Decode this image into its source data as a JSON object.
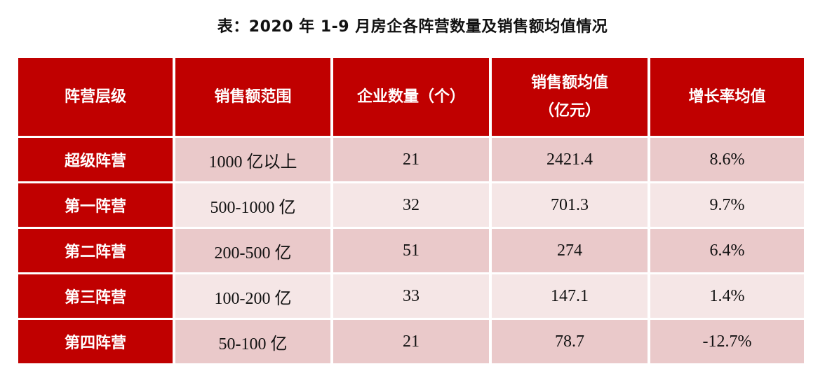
{
  "title": "表：2020 年 1-9 月房企各阵营数量及销售额均值情况",
  "headers": [
    {
      "line1": "阵营层级",
      "line2": ""
    },
    {
      "line1": "销售额范围",
      "line2": ""
    },
    {
      "line1": "企业数量（个）",
      "line2": ""
    },
    {
      "line1": "销售额均值",
      "line2": "（亿元）"
    },
    {
      "line1": "增长率均值",
      "line2": ""
    }
  ],
  "rows": [
    {
      "tier": "超级阵营",
      "range": "1000 亿以上",
      "count": "21",
      "avg_sales": "2421.4",
      "growth": "8.6%"
    },
    {
      "tier": "第一阵营",
      "range": "500-1000 亿",
      "count": "32",
      "avg_sales": "701.3",
      "growth": "9.7%"
    },
    {
      "tier": "第二阵营",
      "range": "200-500 亿",
      "count": "51",
      "avg_sales": "274",
      "growth": "6.4%"
    },
    {
      "tier": "第三阵营",
      "range": "100-200 亿",
      "count": "33",
      "avg_sales": "147.1",
      "growth": "1.4%"
    },
    {
      "tier": "第四阵营",
      "range": "50-100 亿",
      "count": "21",
      "avg_sales": "78.7",
      "growth": "-12.7%"
    }
  ],
  "colors": {
    "header_bg": "#c00000",
    "row_shade_dark": "#eac9ca",
    "row_shade_light": "#f5e6e6"
  }
}
